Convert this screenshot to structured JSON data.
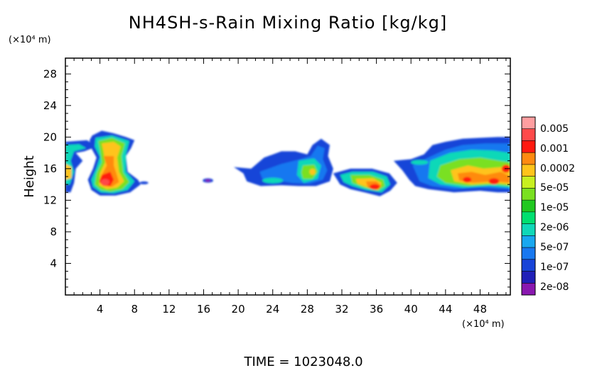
{
  "chart_data": {
    "type": "heatmap",
    "title": "NH4SH-s-Rain Mixing Ratio [kg/kg]",
    "ylabel": "Height",
    "y_unit": "(×10⁴ m)",
    "x_unit": "(×10⁴ m)",
    "xlim": [
      0,
      51.5
    ],
    "ylim": [
      0,
      30
    ],
    "x_ticks": [
      4,
      8,
      12,
      16,
      20,
      24,
      28,
      32,
      36,
      40,
      44,
      48
    ],
    "y_ticks": [
      4,
      8,
      12,
      16,
      20,
      24,
      28
    ],
    "footer": "TIME = 1023048.0",
    "colorbar": {
      "labels": [
        "0.005",
        "0.001",
        "0.0002",
        "5e-05",
        "1e-05",
        "2e-06",
        "5e-07",
        "1e-07",
        "2e-08"
      ],
      "colors": [
        "#ff9ea0",
        "#ff4a4a",
        "#ff1a10",
        "#ff8a10",
        "#ffc41a",
        "#c8f020",
        "#7ae020",
        "#20c820",
        "#00e070",
        "#10d8b8",
        "#18a8f0",
        "#1878f0",
        "#1844d8",
        "#2020b8",
        "#8a18b0"
      ]
    },
    "regions": [
      {
        "name": "cloud-a",
        "x": [
          0,
          4.5
        ],
        "y": [
          13,
          19.5
        ],
        "peak": "0.001"
      },
      {
        "name": "cloud-b",
        "x": [
          2.5,
          9.5
        ],
        "y": [
          12.5,
          20.8
        ],
        "peak": "0.001"
      },
      {
        "name": "cloud-c",
        "x": [
          15.8,
          17.2
        ],
        "y": [
          14.3,
          14.8
        ],
        "peak": "2e-08"
      },
      {
        "name": "cloud-d",
        "x": [
          19.5,
          31
        ],
        "y": [
          13.8,
          19.8
        ],
        "peak": "1e-05"
      },
      {
        "name": "cloud-e",
        "x": [
          31,
          38.5
        ],
        "y": [
          12.5,
          16.2
        ],
        "peak": "0.001"
      },
      {
        "name": "cloud-f",
        "x": [
          38,
          51.5
        ],
        "y": [
          13,
          20
        ],
        "peak": "0.001"
      }
    ]
  }
}
